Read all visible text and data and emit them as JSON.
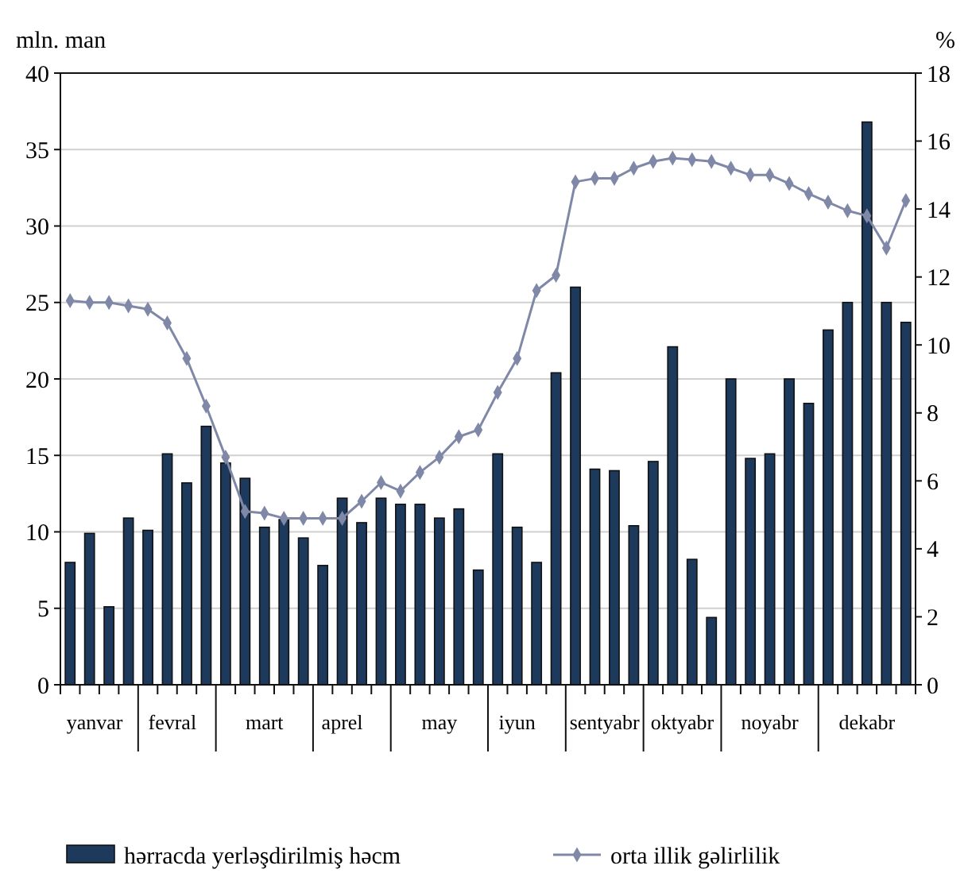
{
  "chart_data": {
    "type": "bar",
    "ylabel": "mln. man",
    "y2label": "%",
    "categories": [
      null,
      "yanvar",
      null,
      null,
      null,
      "fevral",
      null,
      null,
      null,
      null,
      "mart",
      null,
      null,
      null,
      "aprel",
      null,
      null,
      null,
      null,
      "may",
      null,
      null,
      null,
      "iyun",
      null,
      null,
      null,
      "sentyabr",
      null,
      null,
      null,
      "oktyabr",
      null,
      null,
      null,
      null,
      "noyabr",
      null,
      null,
      null,
      null,
      "dekabr",
      null,
      null
    ],
    "series": [
      {
        "name": "hərracda yerləşdirilmiş həcm",
        "color": "#1d3a5c",
        "values": [
          8,
          9.9,
          5.1,
          10.9,
          10.1,
          15.1,
          13.2,
          16.9,
          14.5,
          13.5,
          10.3,
          10.8,
          9.6,
          7.8,
          12.2,
          10.6,
          12.2,
          11.8,
          11.8,
          10.9,
          11.5,
          7.5,
          15.1,
          10.3,
          8,
          20.4,
          26,
          14.1,
          14,
          10.4,
          14.6,
          22.1,
          8.2,
          4.4,
          20,
          14.8,
          15.1,
          20,
          18.4,
          23.2,
          25,
          36.8,
          25,
          23.7
        ]
      },
      {
        "name": "orta illik gəlirlilik",
        "type": "line",
        "axis": "y2",
        "color": "#8088a8",
        "marker": "diamond",
        "values": [
          11.3,
          11.25,
          11.25,
          11.15,
          11.05,
          10.65,
          9.6,
          8.2,
          6.7,
          5.1,
          5.05,
          4.9,
          4.9,
          4.9,
          4.9,
          5.4,
          5.95,
          5.7,
          6.25,
          6.7,
          7.3,
          7.5,
          8.6,
          9.6,
          11.6,
          12.05,
          14.8,
          14.9,
          14.9,
          15.2,
          15.4,
          15.5,
          15.45,
          15.4,
          15.2,
          15,
          15,
          14.75,
          14.45,
          14.2,
          13.95,
          13.8,
          12.85,
          14.25
        ]
      }
    ],
    "ylim": [
      0,
      40
    ],
    "yticks": [
      0,
      5,
      10,
      15,
      20,
      25,
      30,
      35,
      40
    ],
    "y2lim": [
      0,
      18
    ],
    "y2ticks": [
      0,
      2,
      4,
      6,
      8,
      10,
      12,
      14,
      16,
      18
    ],
    "grid": "y",
    "legend": "bottom"
  }
}
